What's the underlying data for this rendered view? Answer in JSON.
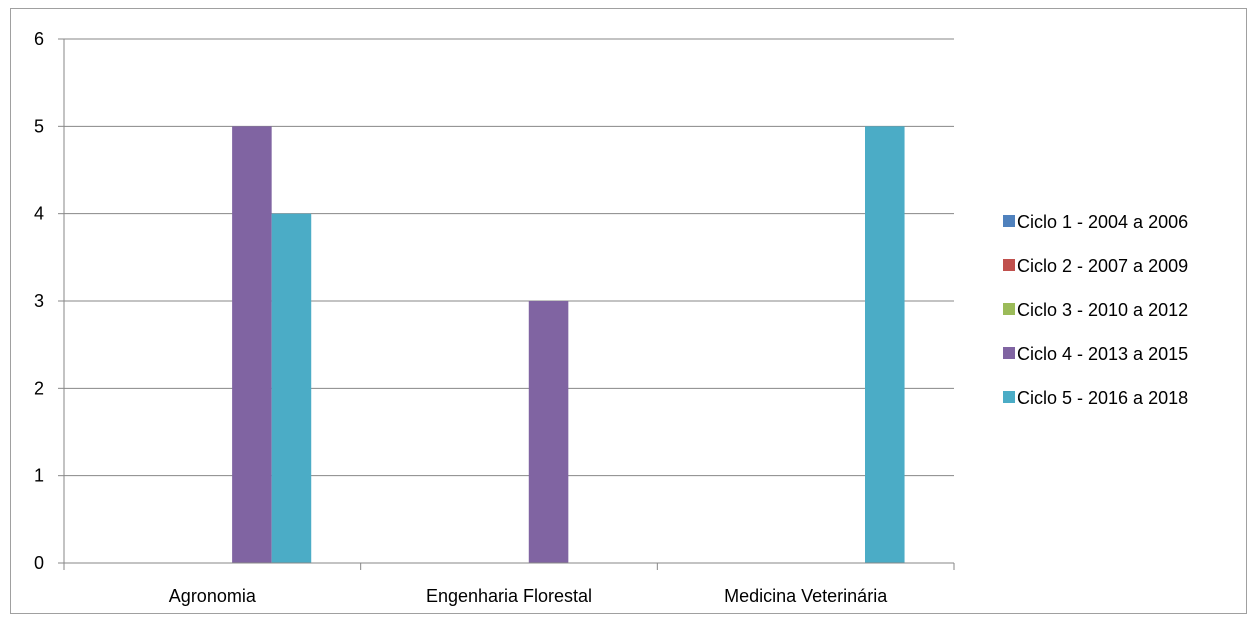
{
  "chart_data": {
    "type": "bar",
    "title": "",
    "xlabel": "",
    "ylabel": "",
    "categories": [
      "Agronomia",
      "Engenharia Florestal",
      "Medicina Veterinária"
    ],
    "series": [
      {
        "name": "Ciclo 1 - 2004 a 2006",
        "color": "#4f81bd",
        "values": [
          0,
          0,
          0
        ]
      },
      {
        "name": "Ciclo 2 - 2007 a 2009",
        "color": "#c0504d",
        "values": [
          0,
          0,
          0
        ]
      },
      {
        "name": "Ciclo 3 - 2010 a 2012",
        "color": "#9bbb59",
        "values": [
          0,
          0,
          0
        ]
      },
      {
        "name": "Ciclo 4 - 2013 a 2015",
        "color": "#8064a2",
        "values": [
          5,
          3,
          0
        ]
      },
      {
        "name": "Ciclo 5 - 2016 a 2018",
        "color": "#4bacc6",
        "values": [
          4,
          0,
          5
        ]
      }
    ],
    "ylim": [
      0,
      6
    ],
    "yticks": [
      0,
      1,
      2,
      3,
      4,
      5,
      6
    ],
    "grid": true,
    "legend": "right"
  }
}
